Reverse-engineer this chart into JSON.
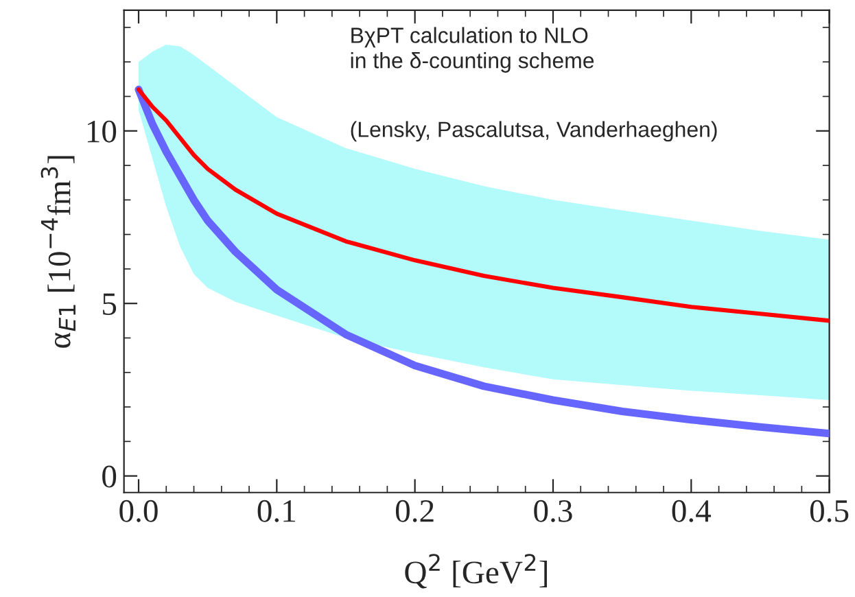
{
  "chart_data": {
    "type": "line",
    "xlabel": "Q$^{2}$ [GeV$^{2}$]",
    "ylabel": "α$_{E1}$ [10$^{−4}$fm$^{3}$]",
    "annotations": [
      "BχPT calculation to NLO\nin the δ-counting scheme",
      "(Lensky, Pascalutsa, Vanderhaeghen)"
    ],
    "x": [
      0,
      0.01,
      0.02,
      0.03,
      0.04,
      0.05,
      0.07,
      0.1,
      0.15,
      0.2,
      0.25,
      0.3,
      0.35,
      0.4,
      0.45,
      0.5
    ],
    "series": [
      {
        "color": "#ff0000",
        "values": [
          11.2,
          10.7,
          10.3,
          9.8,
          9.3,
          8.9,
          8.3,
          7.6,
          6.8,
          6.25,
          5.8,
          5.45,
          5.18,
          4.9,
          4.7,
          4.5
        ],
        "lower": [
          10.6,
          9.2,
          7.8,
          6.65,
          5.85,
          5.45,
          5.05,
          4.65,
          4.0,
          3.55,
          3.15,
          2.8,
          2.63,
          2.47,
          2.34,
          2.2
        ],
        "upper": [
          12.0,
          12.3,
          12.5,
          12.45,
          12.2,
          11.9,
          11.3,
          10.4,
          9.5,
          8.9,
          8.4,
          8.0,
          7.7,
          7.4,
          7.1,
          6.85
        ]
      },
      {
        "color": "#6666ff",
        "values": [
          11.2,
          10.2,
          9.4,
          8.7,
          8.0,
          7.4,
          6.5,
          5.4,
          4.1,
          3.2,
          2.6,
          2.2,
          1.87,
          1.63,
          1.42,
          1.23
        ]
      }
    ],
    "xlim": [
      -0.0106,
      0.5
    ],
    "ylim": [
      -0.48,
      13.5
    ],
    "xticks": [
      {
        "value": 0,
        "label": "0.0"
      },
      0.1,
      0.2,
      0.3,
      0.4,
      0.5
    ],
    "yticks": [
      0,
      5,
      10
    ],
    "grid": false,
    "legend": false,
    "marker": "none",
    "line_style": "solid"
  }
}
